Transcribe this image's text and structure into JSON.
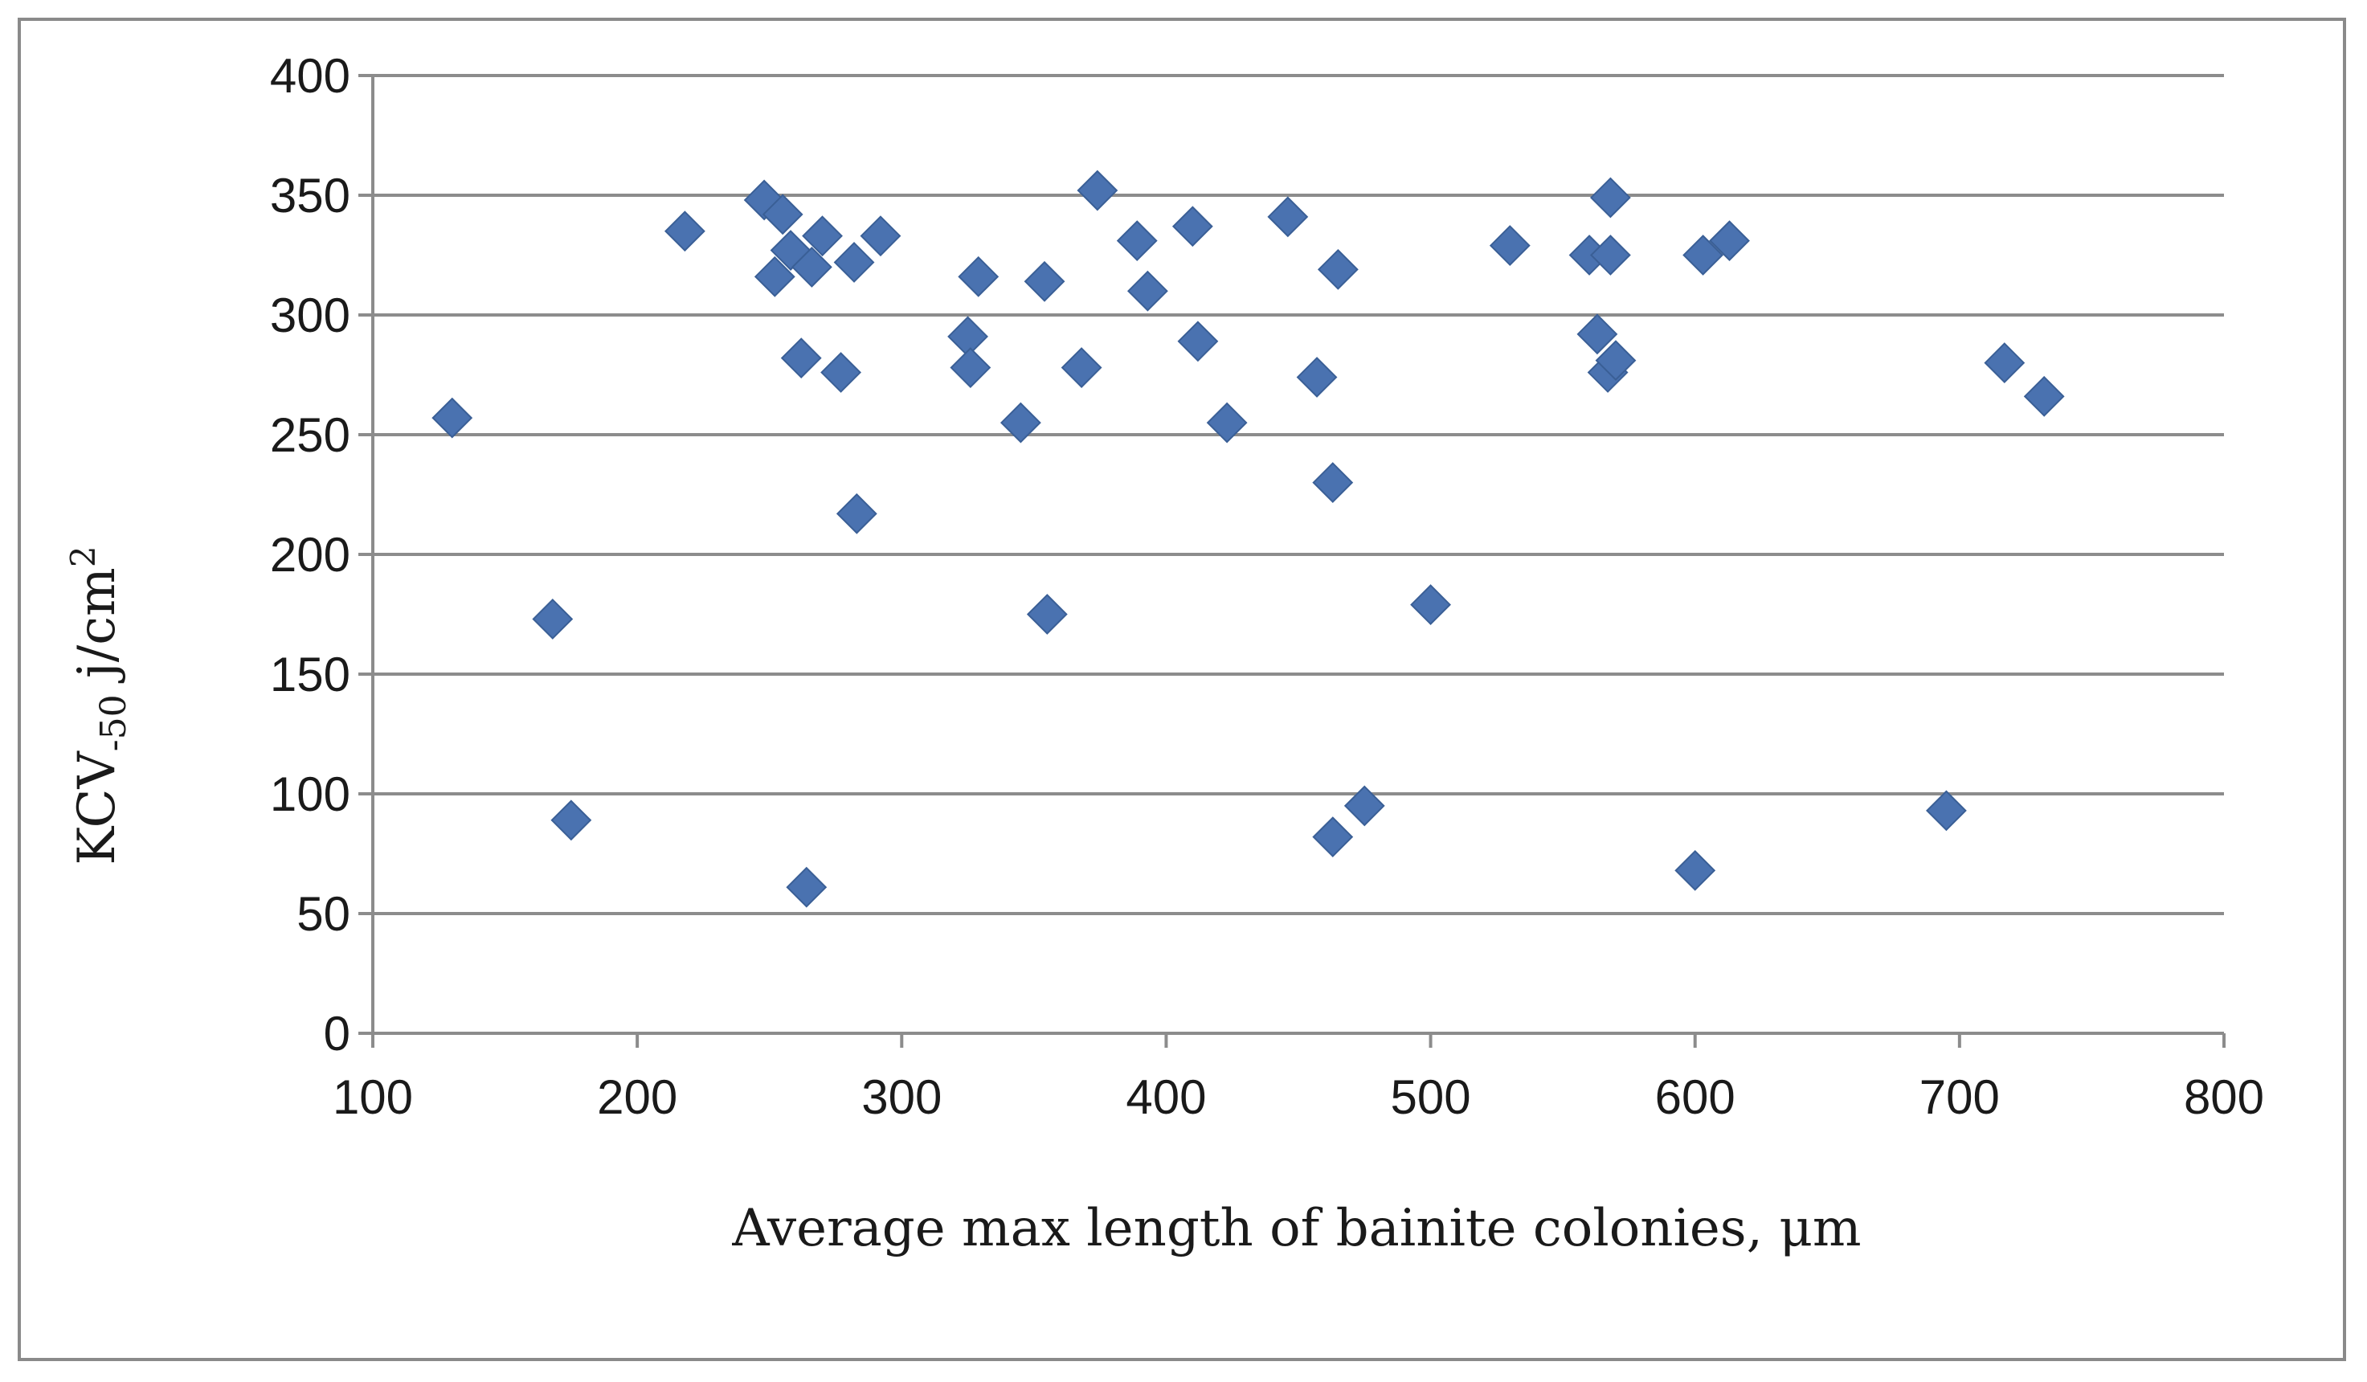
{
  "chart_data": {
    "type": "scatter",
    "xlabel": "Average max length of bainite colonies, μm",
    "ylabel_main": "KCV",
    "ylabel_sub": "-50",
    "ylabel_unit": " j/cm",
    "ylabel_sup": "2",
    "xlim": [
      100,
      800
    ],
    "ylim": [
      0,
      400
    ],
    "x_ticks": [
      100,
      200,
      300,
      400,
      500,
      600,
      700,
      800
    ],
    "y_ticks": [
      0,
      50,
      100,
      150,
      200,
      250,
      300,
      350,
      400
    ],
    "grid": "horizontal",
    "marker": "diamond",
    "marker_color": "#4a72b0",
    "series": [
      {
        "points": [
          [
            130,
            257
          ],
          [
            168,
            173
          ],
          [
            175,
            89
          ],
          [
            218,
            335
          ],
          [
            248,
            348
          ],
          [
            252,
            316
          ],
          [
            255,
            342
          ],
          [
            258,
            327
          ],
          [
            262,
            282
          ],
          [
            264,
            61
          ],
          [
            266,
            320
          ],
          [
            270,
            333
          ],
          [
            277,
            276
          ],
          [
            282,
            322
          ],
          [
            283,
            217
          ],
          [
            292,
            333
          ],
          [
            325,
            291
          ],
          [
            326,
            278
          ],
          [
            329,
            316
          ],
          [
            345,
            255
          ],
          [
            354,
            314
          ],
          [
            355,
            175
          ],
          [
            368,
            278
          ],
          [
            374,
            352
          ],
          [
            389,
            331
          ],
          [
            393,
            310
          ],
          [
            410,
            337
          ],
          [
            412,
            289
          ],
          [
            423,
            255
          ],
          [
            446,
            341
          ],
          [
            457,
            274
          ],
          [
            463,
            230
          ],
          [
            465,
            319
          ],
          [
            463,
            82
          ],
          [
            475,
            95
          ],
          [
            500,
            179
          ],
          [
            530,
            329
          ],
          [
            560,
            325
          ],
          [
            563,
            292
          ],
          [
            567,
            276
          ],
          [
            568,
            325
          ],
          [
            568,
            349
          ],
          [
            570,
            281
          ],
          [
            600,
            68
          ],
          [
            603,
            325
          ],
          [
            613,
            331
          ],
          [
            695,
            93
          ],
          [
            717,
            280
          ],
          [
            732,
            266
          ]
        ]
      }
    ]
  }
}
